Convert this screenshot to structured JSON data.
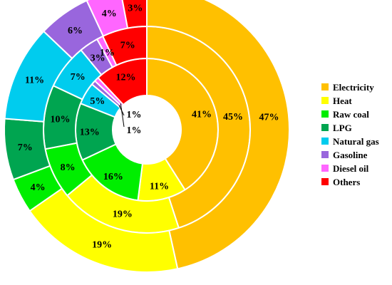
{
  "chart_data": {
    "type": "pie",
    "subtype": "nested-donut",
    "legend_position": "right",
    "categories": [
      "Electricity",
      "Heat",
      "Raw coal",
      "LPG",
      "Natural gas",
      "Gasoline",
      "Diesel oil",
      "Others"
    ],
    "colors": [
      "#FFC000",
      "#FFFF00",
      "#00EE00",
      "#00A550",
      "#00CCEE",
      "#9966DD",
      "#FF66FF",
      "#FF0000"
    ],
    "series": [
      {
        "ring": "inner",
        "values": [
          41,
          11,
          16,
          13,
          5,
          1,
          1,
          12
        ],
        "labels": [
          "41%",
          "11%",
          "16%",
          "13%",
          "5%",
          "1%",
          "1%",
          "12%"
        ]
      },
      {
        "ring": "middle",
        "values": [
          45,
          19,
          8,
          10,
          7,
          3,
          1,
          7
        ],
        "labels": [
          "45%",
          "19%",
          "8%",
          "10%",
          "7%",
          "3%",
          "1%",
          "7%"
        ]
      },
      {
        "ring": "outer",
        "values": [
          47,
          19,
          4,
          7,
          11,
          6,
          4,
          3
        ],
        "labels": [
          "47%",
          "19%",
          "4%",
          "7%",
          "11%",
          "6%",
          "4%",
          "3%"
        ]
      }
    ]
  }
}
